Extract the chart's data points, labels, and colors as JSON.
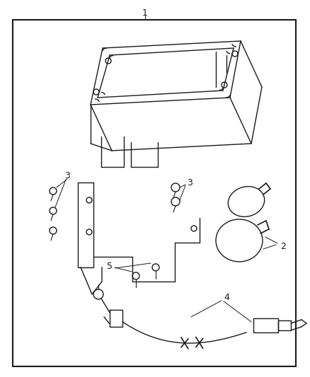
{
  "background_color": "#ffffff",
  "border_color": "#1a1a1a",
  "line_color": "#1a1a1a",
  "label_color": "#1a1a1a",
  "fig_width": 4.38,
  "fig_height": 5.33,
  "dpi": 100
}
